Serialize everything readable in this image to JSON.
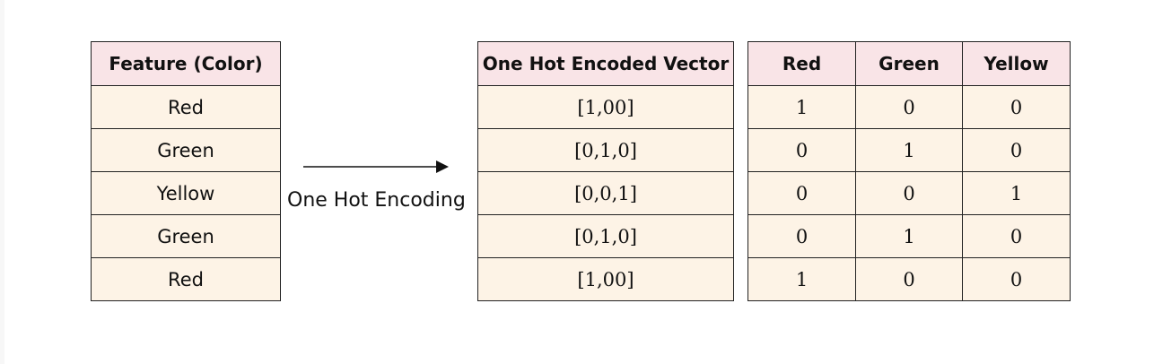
{
  "feature_table": {
    "header": "Feature (Color)",
    "rows": [
      "Red",
      "Green",
      "Yellow",
      "Green",
      "Red"
    ]
  },
  "transform": {
    "label": "One Hot Encoding"
  },
  "vector_table": {
    "header": "One Hot Encoded Vector",
    "rows": [
      "[1,00]",
      "[0,1,0]",
      "[0,0,1]",
      "[0,1,0]",
      "[1,00]"
    ]
  },
  "onehot_table": {
    "headers": [
      "Red",
      "Green",
      "Yellow"
    ],
    "rows": [
      [
        "1",
        "0",
        "0"
      ],
      [
        "0",
        "1",
        "0"
      ],
      [
        "0",
        "0",
        "1"
      ],
      [
        "0",
        "1",
        "0"
      ],
      [
        "1",
        "0",
        "0"
      ]
    ]
  },
  "colors": {
    "header_bg": "#f9e4e7",
    "cell_bg": "#fdf3e6",
    "border": "#222222"
  }
}
